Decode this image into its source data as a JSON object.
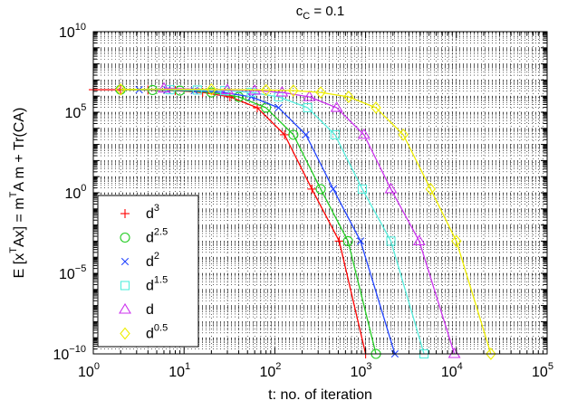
{
  "chart_data": {
    "type": "line",
    "title": {
      "base": "c",
      "sub": "C",
      "rest": " = 0.1"
    },
    "xlabel": "t: no. of iteration",
    "ylabel": {
      "parts": [
        {
          "t": "E [x"
        },
        {
          "t": "T",
          "sup": true
        },
        {
          "t": "Ax] = m"
        },
        {
          "t": "T",
          "sup": true
        },
        {
          "t": "A m + Tr(CA)"
        }
      ]
    },
    "xscale": "log",
    "yscale": "log",
    "xlim": [
      1,
      100000
    ],
    "ylim": [
      1e-10,
      10000000000.0
    ],
    "grid": true,
    "xticks": [
      {
        "value": 1,
        "exp": "0"
      },
      {
        "value": 10,
        "exp": "1"
      },
      {
        "value": 100,
        "exp": "2"
      },
      {
        "value": 1000,
        "exp": "3"
      },
      {
        "value": 10000,
        "exp": "4"
      },
      {
        "value": 100000,
        "exp": "5"
      }
    ],
    "yticks": [
      {
        "value": 1e-10,
        "exp": "−10"
      },
      {
        "value": 1e-05,
        "exp": "−5"
      },
      {
        "value": 1,
        "exp": "0"
      },
      {
        "value": 100000.0,
        "exp": "5"
      },
      {
        "value": 10000000000.0,
        "exp": "10"
      }
    ],
    "tick_base": "10",
    "legend_loc": "lower-left",
    "series": [
      {
        "name": "d",
        "exp": "3",
        "color": "#ff0000",
        "marker": "plus",
        "x": [
          1,
          2,
          4,
          8,
          16,
          32,
          64,
          128,
          256,
          512,
          1000
        ],
        "y": [
          2500000.0,
          2500000.0,
          2400000.0,
          2200000.0,
          1700000.0,
          900000.0,
          190000.0,
          4000.0,
          1.7,
          0.001,
          1e-10
        ]
      },
      {
        "name": "d",
        "exp": "2.5",
        "color": "#22cc22",
        "marker": "circle",
        "x": [
          2,
          4.5,
          9,
          20,
          40,
          80,
          160,
          320,
          640,
          1300
        ],
        "y": [
          2500000.0,
          2400000.0,
          2200000.0,
          1700000.0,
          900000.0,
          190000.0,
          4000.0,
          1.7,
          0.001,
          1e-10
        ]
      },
      {
        "name": "d",
        "exp": "2",
        "color": "#2244ff",
        "marker": "cross",
        "x": [
          3.2,
          6.5,
          13,
          27,
          55,
          110,
          220,
          440,
          880,
          2100
        ],
        "y": [
          2500000.0,
          2400000.0,
          2200000.0,
          1700000.0,
          900000.0,
          190000.0,
          4000.0,
          1.7,
          0.001,
          1e-10
        ]
      },
      {
        "name": "d",
        "exp": "1.5",
        "color": "#55eedd",
        "marker": "square",
        "x": [
          7,
          14,
          28,
          55,
          110,
          230,
          460,
          920,
          1900,
          4400
        ],
        "y": [
          2500000.0,
          2400000.0,
          2200000.0,
          1700000.0,
          900000.0,
          190000.0,
          4000.0,
          1.7,
          0.001,
          1e-10
        ]
      },
      {
        "name": "d",
        "exp": "",
        "color": "#cc33ee",
        "marker": "triangle",
        "x": [
          6,
          30,
          60,
          120,
          240,
          480,
          960,
          1900,
          3900,
          9500
        ],
        "y": [
          3000000.0,
          2400000.0,
          2200000.0,
          1700000.0,
          900000.0,
          190000.0,
          4000.0,
          1.7,
          0.001,
          1e-10
        ]
      },
      {
        "name": "d",
        "exp": "0.5",
        "color": "#eeee00",
        "marker": "diamond",
        "x": [
          2,
          20,
          80,
          160,
          320,
          650,
          1300,
          2600,
          5200,
          10000,
          24000
        ],
        "y": [
          2600000.0,
          2600000.0,
          2400000.0,
          2200000.0,
          1700000.0,
          900000.0,
          190000.0,
          4000.0,
          1.7,
          0.001,
          1e-10
        ]
      }
    ]
  }
}
